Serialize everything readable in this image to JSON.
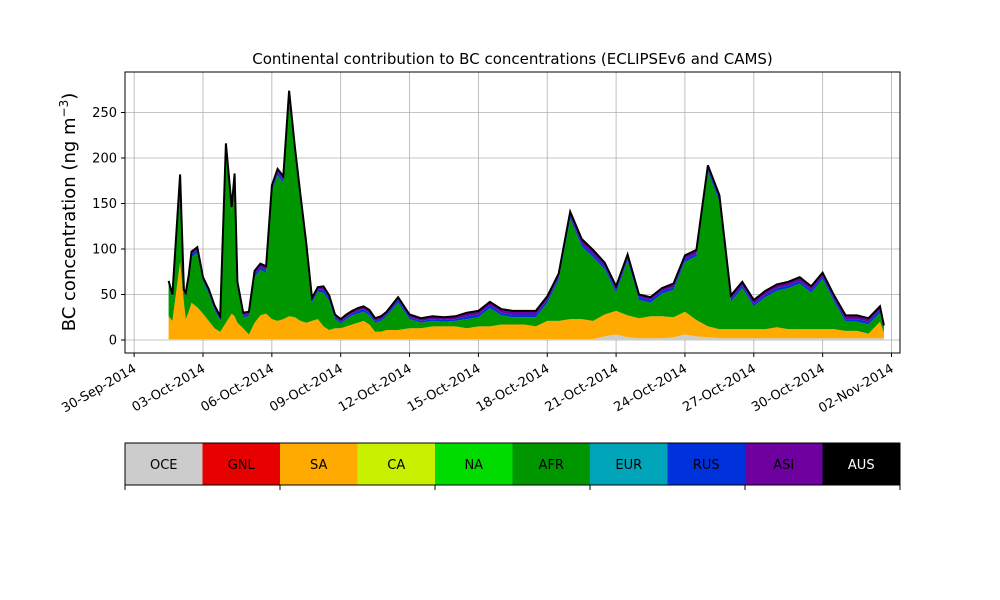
{
  "chart_data": {
    "type": "area",
    "stacked": true,
    "title": "Continental contribution to BC concentrations (ECLIPSEv6 and CAMS)",
    "xlabel": "",
    "ylabel": "BC concentration (ng m⁻³)",
    "ylabel_main": "BC concentration (ng m",
    "ylabel_exp": "−3",
    "ylabel_close": ")",
    "x_range": [
      "2014-09-30",
      "2014-11-02"
    ],
    "ylim": [
      -13,
      295
    ],
    "grid": true,
    "y_ticks": [
      0,
      50,
      100,
      150,
      200,
      250
    ],
    "x_ticks": [
      "30-Sep-2014",
      "03-Oct-2014",
      "06-Oct-2014",
      "09-Oct-2014",
      "12-Oct-2014",
      "15-Oct-2014",
      "18-Oct-2014",
      "21-Oct-2014",
      "24-Oct-2014",
      "27-Oct-2014",
      "30-Oct-2014",
      "02-Nov-2014"
    ],
    "legend": {
      "placement": "bottom",
      "entries": [
        {
          "name": "OCE",
          "color": "#cccccc",
          "text_color": "#000000"
        },
        {
          "name": "GNL",
          "color": "#e60000",
          "text_color": "#000000"
        },
        {
          "name": "SA",
          "color": "#ffaa00",
          "text_color": "#000000"
        },
        {
          "name": "CA",
          "color": "#c8f000",
          "text_color": "#000000"
        },
        {
          "name": "NA",
          "color": "#00dc00",
          "text_color": "#000000"
        },
        {
          "name": "AFR",
          "color": "#009600",
          "text_color": "#000000"
        },
        {
          "name": "EUR",
          "color": "#00a5b9",
          "text_color": "#000000"
        },
        {
          "name": "RUS",
          "color": "#0032dc",
          "text_color": "#000000"
        },
        {
          "name": "ASI",
          "color": "#6e00a0",
          "text_color": "#000000"
        },
        {
          "name": "AUS",
          "color": "#000000",
          "text_color": "#ffffff"
        }
      ]
    },
    "outline_color": "#000000",
    "series_x": [
      "2014-10-01T12:00",
      "2014-10-01T16:00",
      "2014-10-02T00:00",
      "2014-10-02T04:00",
      "2014-10-02T06:00",
      "2014-10-02T09:00",
      "2014-10-02T12:00",
      "2014-10-02T18:00",
      "2014-10-03T00:00",
      "2014-10-03T06:00",
      "2014-10-03T12:00",
      "2014-10-03T18:00",
      "2014-10-04T00:00",
      "2014-10-04T06:00",
      "2014-10-04T09:00",
      "2014-10-04T12:00",
      "2014-10-04T18:00",
      "2014-10-05T00:00",
      "2014-10-05T06:00",
      "2014-10-05T12:00",
      "2014-10-05T18:00",
      "2014-10-06T00:00",
      "2014-10-06T06:00",
      "2014-10-06T12:00",
      "2014-10-06T18:00",
      "2014-10-07T00:00",
      "2014-10-07T06:00",
      "2014-10-07T12:00",
      "2014-10-07T18:00",
      "2014-10-08T00:00",
      "2014-10-08T06:00",
      "2014-10-08T12:00",
      "2014-10-08T18:00",
      "2014-10-09T00:00",
      "2014-10-09T06:00",
      "2014-10-09T12:00",
      "2014-10-09T18:00",
      "2014-10-10T00:00",
      "2014-10-10T06:00",
      "2014-10-10T12:00",
      "2014-10-10T18:00",
      "2014-10-11T00:00",
      "2014-10-11T12:00",
      "2014-10-12T00:00",
      "2014-10-12T12:00",
      "2014-10-13T00:00",
      "2014-10-13T12:00",
      "2014-10-14T00:00",
      "2014-10-14T12:00",
      "2014-10-15T00:00",
      "2014-10-15T12:00",
      "2014-10-16T00:00",
      "2014-10-16T12:00",
      "2014-10-17T00:00",
      "2014-10-17T12:00",
      "2014-10-18T00:00",
      "2014-10-18T12:00",
      "2014-10-19T00:00",
      "2014-10-19T12:00",
      "2014-10-20T00:00",
      "2014-10-20T12:00",
      "2014-10-21T00:00",
      "2014-10-21T12:00",
      "2014-10-22T00:00",
      "2014-10-22T12:00",
      "2014-10-23T00:00",
      "2014-10-23T12:00",
      "2014-10-24T00:00",
      "2014-10-24T12:00",
      "2014-10-25T00:00",
      "2014-10-25T12:00",
      "2014-10-26T00:00",
      "2014-10-26T12:00",
      "2014-10-27T00:00",
      "2014-10-27T12:00",
      "2014-10-28T00:00",
      "2014-10-28T12:00",
      "2014-10-29T00:00",
      "2014-10-29T12:00",
      "2014-10-30T00:00",
      "2014-10-30T12:00",
      "2014-10-31T00:00",
      "2014-10-31T12:00",
      "2014-11-01T00:00",
      "2014-11-01T12:00",
      "2014-11-01T16:00"
    ],
    "series": [
      {
        "name": "OCE",
        "values": [
          1,
          1,
          1,
          1,
          1,
          1,
          1,
          1,
          1,
          1,
          1,
          1,
          1,
          1,
          1,
          1,
          1,
          1,
          1,
          1,
          1,
          1,
          1,
          1,
          1,
          1,
          1,
          1,
          1,
          1,
          1,
          1,
          1,
          1,
          1,
          1,
          1,
          1,
          1,
          1,
          1,
          1,
          1,
          1,
          1,
          1,
          1,
          1,
          1,
          1,
          1,
          1,
          1,
          1,
          1,
          1,
          1,
          1,
          1,
          1,
          4,
          6,
          3,
          2,
          2,
          2,
          3,
          6,
          4,
          3,
          2,
          2,
          2,
          2,
          2,
          2,
          2,
          2,
          2,
          2,
          2,
          2,
          2,
          2,
          2,
          2
        ]
      },
      {
        "name": "SA",
        "values": [
          25,
          20,
          85,
          40,
          22,
          30,
          40,
          35,
          28,
          20,
          12,
          8,
          18,
          28,
          25,
          18,
          12,
          5,
          18,
          26,
          28,
          22,
          20,
          22,
          25,
          24,
          20,
          18,
          20,
          22,
          14,
          10,
          12,
          12,
          14,
          16,
          18,
          20,
          16,
          8,
          8,
          10,
          10,
          12,
          12,
          14,
          14,
          14,
          12,
          14,
          14,
          16,
          16,
          16,
          14,
          20,
          20,
          22,
          22,
          20,
          24,
          26,
          24,
          22,
          24,
          24,
          22,
          25,
          18,
          12,
          10,
          10,
          10,
          10,
          10,
          12,
          10,
          10,
          10,
          10,
          10,
          8,
          8,
          5,
          18,
          6
        ]
      },
      {
        "name": "AFR",
        "values": [
          35,
          25,
          90,
          10,
          25,
          35,
          50,
          60,
          35,
          30,
          20,
          12,
          190,
          110,
          150,
          40,
          12,
          20,
          50,
          50,
          45,
          140,
          160,
          150,
          240,
          180,
          130,
          80,
          20,
          30,
          37,
          32,
          10,
          5,
          8,
          10,
          10,
          10,
          10,
          10,
          12,
          15,
          30,
          10,
          6,
          6,
          5,
          6,
          10,
          10,
          20,
          10,
          8,
          8,
          10,
          20,
          45,
          110,
          80,
          70,
          50,
          20,
          60,
          20,
          15,
          25,
          30,
          55,
          70,
          170,
          140,
          30,
          45,
          25,
          35,
          40,
          45,
          50,
          40,
          55,
          30,
          10,
          10,
          10,
          10,
          3
        ]
      },
      {
        "name": "RUS",
        "values": [
          2,
          2,
          3,
          2,
          2,
          2,
          3,
          3,
          2,
          2,
          2,
          2,
          3,
          3,
          3,
          2,
          2,
          2,
          3,
          3,
          3,
          3,
          3,
          3,
          3,
          3,
          3,
          3,
          2,
          2,
          3,
          3,
          2,
          2,
          2,
          2,
          3,
          3,
          3,
          2,
          2,
          2,
          3,
          2,
          2,
          2,
          2,
          2,
          3,
          3,
          3,
          3,
          3,
          3,
          3,
          3,
          3,
          3,
          3,
          3,
          3,
          3,
          3,
          3,
          3,
          3,
          3,
          3,
          3,
          3,
          3,
          3,
          3,
          3,
          3,
          3,
          3,
          3,
          3,
          3,
          3,
          3,
          3,
          3,
          3,
          2
        ]
      },
      {
        "name": "ASI",
        "values": [
          1,
          1,
          2,
          1,
          1,
          2,
          2,
          2,
          2,
          2,
          2,
          2,
          3,
          3,
          3,
          2,
          2,
          2,
          3,
          3,
          3,
          3,
          3,
          3,
          4,
          4,
          4,
          3,
          2,
          2,
          3,
          2,
          2,
          2,
          2,
          2,
          2,
          2,
          2,
          2,
          2,
          2,
          2,
          2,
          2,
          2,
          2,
          2,
          3,
          3,
          3,
          3,
          3,
          3,
          3,
          3,
          3,
          4,
          4,
          4,
          3,
          3,
          3,
          2,
          2,
          2,
          3,
          3,
          3,
          3,
          3,
          3,
          3,
          3,
          3,
          3,
          3,
          3,
          3,
          3,
          3,
          3,
          3,
          3,
          3,
          2
        ]
      },
      {
        "name": "AUS",
        "values": [
          1,
          1,
          1,
          1,
          1,
          1,
          1,
          1,
          1,
          1,
          1,
          1,
          1,
          1,
          1,
          1,
          1,
          1,
          1,
          1,
          1,
          1,
          1,
          1,
          1,
          1,
          1,
          1,
          1,
          1,
          1,
          1,
          1,
          1,
          1,
          1,
          1,
          1,
          1,
          1,
          1,
          1,
          1,
          1,
          1,
          1,
          1,
          1,
          1,
          1,
          1,
          1,
          1,
          1,
          1,
          1,
          1,
          1,
          1,
          1,
          1,
          1,
          1,
          1,
          1,
          1,
          1,
          1,
          1,
          1,
          1,
          1,
          1,
          1,
          1,
          1,
          1,
          1,
          1,
          1,
          1,
          1,
          1,
          1,
          1,
          1
        ]
      }
    ]
  }
}
